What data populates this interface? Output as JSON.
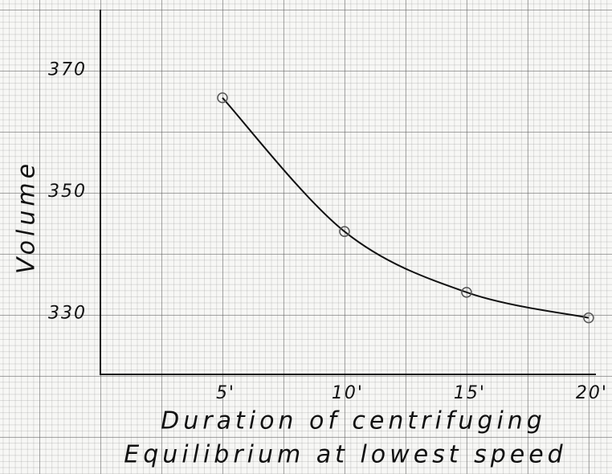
{
  "chart_data": {
    "type": "line",
    "xlabel": [
      "Duration of centrifuging",
      "Equilibrium at lowest speed"
    ],
    "ylabel": "Volume",
    "x": [
      5,
      10,
      15,
      20
    ],
    "series": [
      {
        "color": "#111111",
        "values": [
          365.5,
          343.5,
          333.5,
          329.3
        ]
      }
    ],
    "xlim": [
      0,
      20.3
    ],
    "ylim": [
      320,
      380
    ],
    "xticks": [
      {
        "value": 5,
        "label": "5'"
      },
      {
        "value": 10,
        "label": "10'"
      },
      {
        "value": 15,
        "label": "15'"
      },
      {
        "value": 20,
        "label": "20'"
      }
    ],
    "yticks": [
      330,
      350,
      370
    ],
    "markers": true
  }
}
